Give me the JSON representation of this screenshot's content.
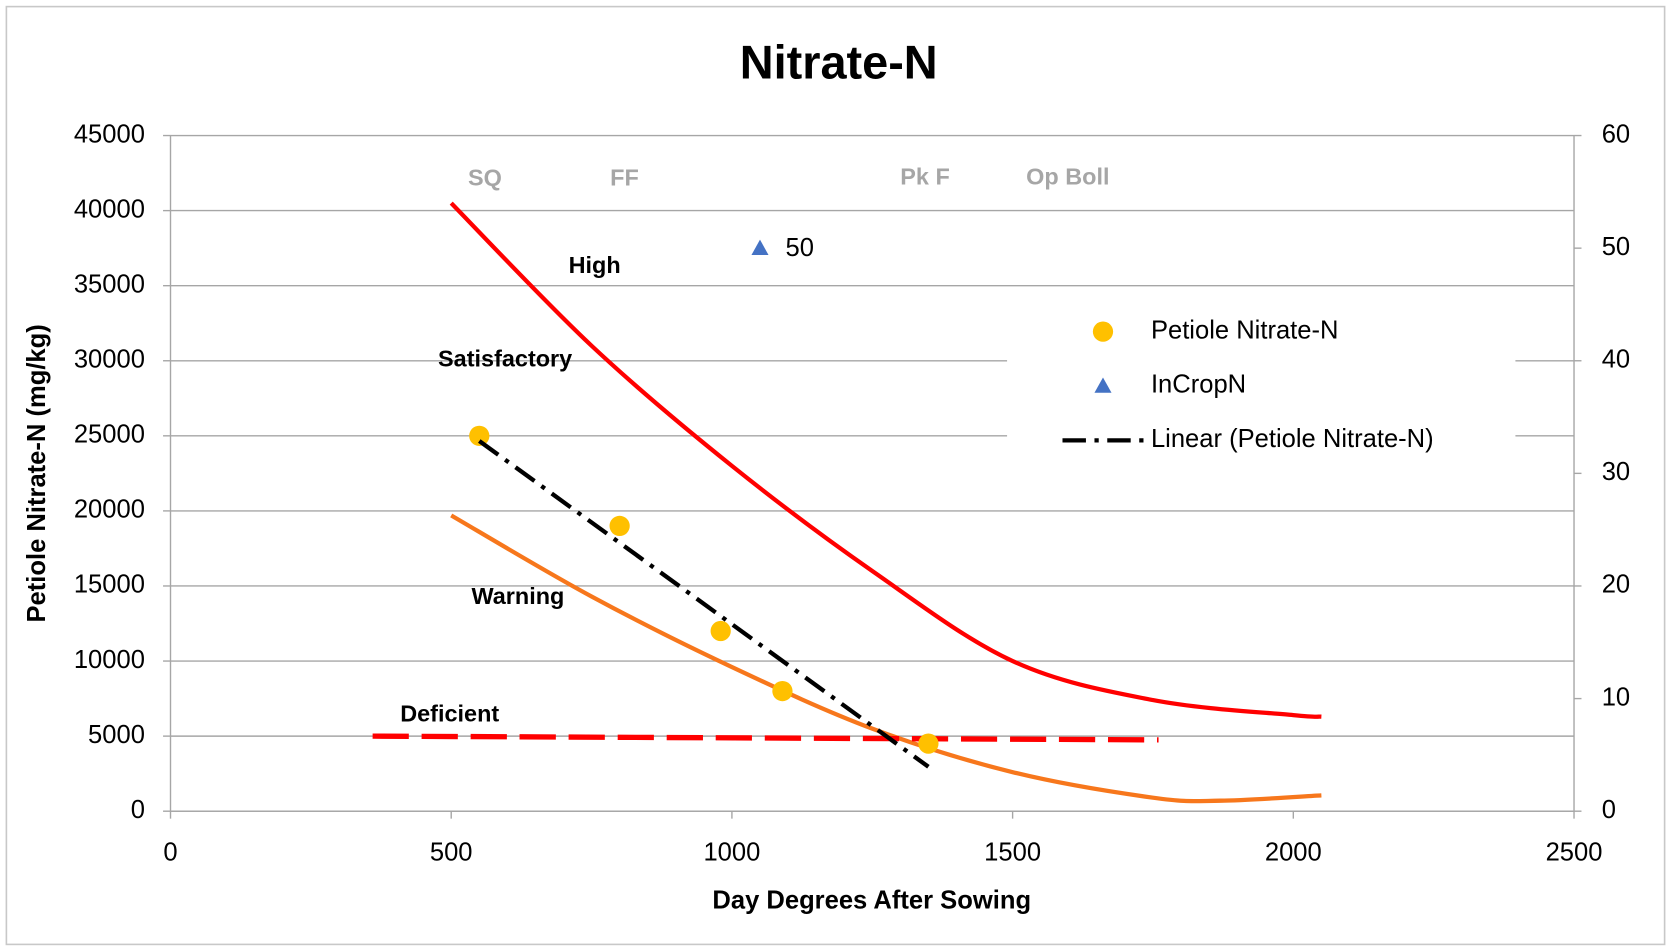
{
  "chart_data": {
    "type": "scatter",
    "title": "Nitrate-N",
    "x_label": "Day Degrees After Sowing",
    "y_label": "Petiole Nitrate-N (mg/kg)",
    "xlim": [
      0,
      2500
    ],
    "xticks": [
      0,
      500,
      1000,
      1500,
      2000,
      2500
    ],
    "ylim": [
      0,
      45000
    ],
    "yticks": [
      0,
      5000,
      10000,
      15000,
      20000,
      25000,
      30000,
      35000,
      40000,
      45000
    ],
    "y2lim": [
      0,
      60
    ],
    "y2ticks": [
      0,
      10,
      20,
      30,
      40,
      50,
      60
    ],
    "grid": true,
    "legend": "right",
    "series": [
      {
        "name": "Petiole Nitrate-N",
        "color": "#ffc000",
        "marker": "circle",
        "x": [
          550,
          800,
          980,
          1090,
          1350
        ],
        "values": [
          25000,
          19000,
          12000,
          8000,
          4500
        ]
      },
      {
        "name": "InCropN",
        "color": "#4472c4",
        "marker": "triangle",
        "axis": "y2",
        "x": [
          1050
        ],
        "values": [
          50
        ]
      },
      {
        "name": "Linear (Petiole Nitrate-N)",
        "color": "#000000",
        "marker": "dash-dot",
        "x": [
          550,
          1350
        ],
        "values": [
          24658,
          2958
        ]
      }
    ],
    "curves": [
      {
        "color": "#ff0000",
        "line_style": "solid",
        "x": [
          500,
          750,
          1000,
          1250,
          1500,
          1750,
          2000,
          2050
        ],
        "values": [
          40500,
          31000,
          23000,
          16000,
          10000,
          7400,
          6400,
          6300
        ]
      },
      {
        "color": "#f7771c",
        "line_style": "solid",
        "x": [
          500,
          750,
          1000,
          1250,
          1500,
          1750,
          1870,
          2050
        ],
        "values": [
          19700,
          14300,
          9600,
          5500,
          2600,
          900,
          700,
          1050
        ]
      },
      {
        "color": "#ff0000",
        "line_style": "dashed",
        "x": [
          360,
          1760
        ],
        "values": [
          5000,
          4750
        ]
      }
    ],
    "stages": [
      "SQ",
      "FF",
      "Pk F",
      "Op Boll"
    ],
    "zones": [
      "High",
      "Satisfactory",
      "Warning",
      "Deficient"
    ]
  }
}
